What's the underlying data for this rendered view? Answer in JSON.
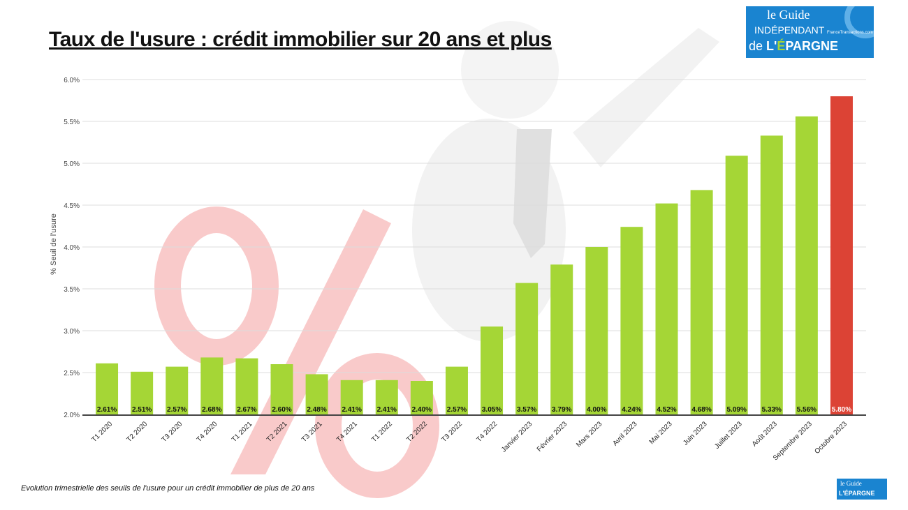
{
  "title": "Taux de l'usure : crédit immobilier sur 20 ans et plus",
  "caption": "Evolution trimestrielle des seuils de l'usure pour un crédit immobilier de plus de 20 ans",
  "logo": {
    "line1": "le",
    "line2": "Guide",
    "line3": "INDÉPENDANT",
    "line4": "de",
    "line5": "L'ÉPARGNE",
    "sub": "FranceTransactions.com"
  },
  "chart_data": {
    "type": "bar",
    "title": "Taux de l'usure : crédit immobilier sur 20 ans et plus",
    "xlabel": "",
    "ylabel": "% Seuil de l'usure",
    "ylim": [
      2.0,
      6.0
    ],
    "yticks": [
      "2.0%",
      "2.5%",
      "3.0%",
      "3.5%",
      "4.0%",
      "4.5%",
      "5.0%",
      "5.5%",
      "6.0%"
    ],
    "grid": true,
    "categories": [
      "T1 2020",
      "T2 2020",
      "T3 2020",
      "T4 2020",
      "T1 2021",
      "T2 2021",
      "T3 2021",
      "T4 2021",
      "T1 2022",
      "T2 2022",
      "T3 2022",
      "T4 2022",
      "Janvier 2023",
      "Février 2023",
      "Mars 2023",
      "Avril 2023",
      "Mai 2023",
      "Juin 2023",
      "Juillet 2023",
      "Août 2023",
      "Septembre 2023",
      "Octobre 2023"
    ],
    "values": [
      2.61,
      2.51,
      2.57,
      2.68,
      2.67,
      2.6,
      2.48,
      2.41,
      2.41,
      2.4,
      2.57,
      3.05,
      3.57,
      3.79,
      4.0,
      4.24,
      4.52,
      4.68,
      5.09,
      5.33,
      5.56,
      5.8
    ],
    "labels": [
      "2.61%",
      "2.51%",
      "2.57%",
      "2.68%",
      "2.67%",
      "2.60%",
      "2.48%",
      "2.41%",
      "2.41%",
      "2.40%",
      "2.57%",
      "3.05%",
      "3.57%",
      "3.79%",
      "4.00%",
      "4.24%",
      "4.52%",
      "4.68%",
      "5.09%",
      "5.33%",
      "5.56%",
      "5.80%"
    ],
    "colors": {
      "default": "#a5d636",
      "highlight": "#dc4335"
    },
    "highlight_index": 21
  }
}
